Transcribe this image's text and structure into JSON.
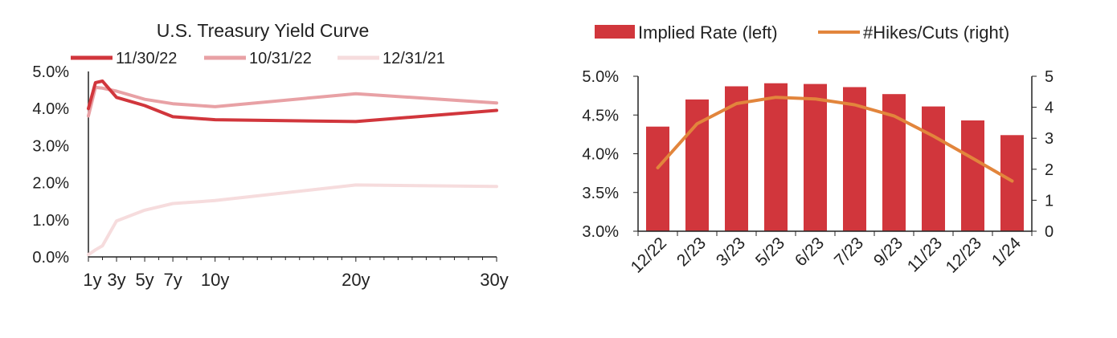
{
  "chart_data": [
    {
      "type": "line",
      "title": "U.S. Treasury Yield Curve",
      "xlabel": "",
      "ylabel": "",
      "x": [
        1,
        1.5,
        2,
        3,
        5,
        7,
        10,
        20,
        30
      ],
      "x_unit": "years to maturity",
      "tick_labels": [
        "1y",
        "3y",
        "5y",
        "7y",
        "10y",
        "20y",
        "30y"
      ],
      "tick_values": [
        1,
        3,
        5,
        7,
        10,
        20,
        30
      ],
      "ylim": [
        0,
        5
      ],
      "y_ticks": [
        "0.0%",
        "1.0%",
        "2.0%",
        "3.0%",
        "4.0%",
        "5.0%"
      ],
      "y_tick_values": [
        0,
        1,
        2,
        3,
        4,
        5
      ],
      "legend_position": "top",
      "series": [
        {
          "name": "11/30/22",
          "color": "#d1363c",
          "values": [
            4.0,
            4.7,
            4.74,
            4.3,
            4.08,
            3.78,
            3.7,
            3.65,
            3.95
          ]
        },
        {
          "name": "10/31/22",
          "color": "#e8a1a5",
          "values": [
            3.8,
            4.57,
            4.55,
            4.47,
            4.25,
            4.13,
            4.05,
            4.4,
            4.15
          ]
        },
        {
          "name": "12/31/21",
          "color": "#f6dcdd",
          "values": [
            0.06,
            0.19,
            0.3,
            0.97,
            1.26,
            1.44,
            1.52,
            1.94,
            1.9
          ]
        }
      ]
    },
    {
      "type": "bar",
      "title": "",
      "categories": [
        "12/22",
        "2/23",
        "3/23",
        "5/23",
        "6/23",
        "7/23",
        "9/23",
        "11/23",
        "12/23",
        "1/24"
      ],
      "ylim": [
        3.0,
        5.0
      ],
      "y_ticks": [
        "3.0%",
        "3.5%",
        "4.0%",
        "4.5%",
        "5.0%"
      ],
      "y_tick_values": [
        3.0,
        3.5,
        4.0,
        4.5,
        5.0
      ],
      "y2lim": [
        0,
        5
      ],
      "y2_ticks": [
        "0",
        "1",
        "2",
        "3",
        "4",
        "5"
      ],
      "y2_tick_values": [
        0,
        1,
        2,
        3,
        4,
        5
      ],
      "legend_position": "top",
      "series": [
        {
          "name": "Implied Rate (left)",
          "type": "bar",
          "axis": "left",
          "color": "#d1363c",
          "values": [
            4.35,
            4.7,
            4.87,
            4.91,
            4.9,
            4.86,
            4.77,
            4.61,
            4.43,
            4.24
          ]
        },
        {
          "name": "#Hikes/Cuts (right)",
          "type": "line",
          "axis": "right",
          "color": "#e2853c",
          "values": [
            2.05,
            3.47,
            4.12,
            4.32,
            4.27,
            4.08,
            3.72,
            3.07,
            2.35,
            1.62
          ]
        }
      ]
    }
  ]
}
